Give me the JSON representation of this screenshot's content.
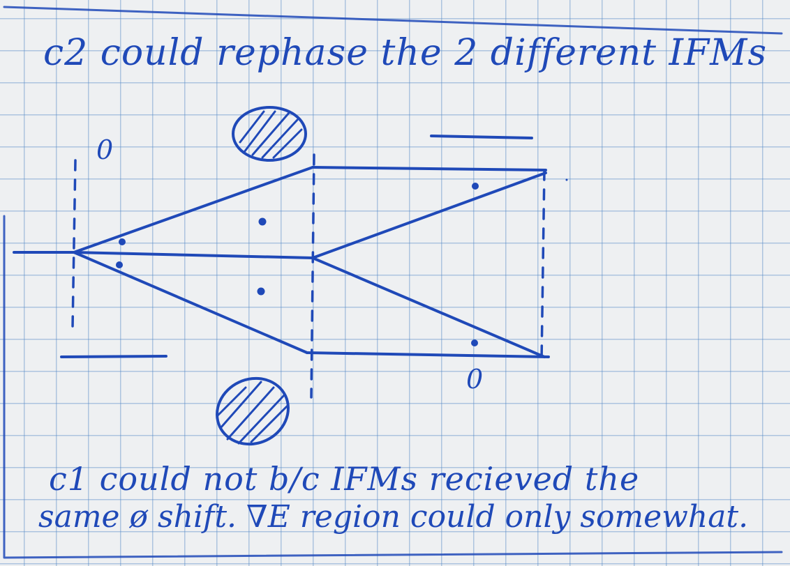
{
  "title": "c2 could rephase the 2 different IFMs",
  "note_line1": "c1 could not b/c IFMs recieved the",
  "note_line2": "same ø shift.  ∇E region could only somewhat.",
  "phase_marker_top_left": "0",
  "phase_marker_bottom_right": "0",
  "ink_color": "#1f49b8",
  "paper_color": "#eef0f2",
  "grid_color": "#5a8cc8"
}
